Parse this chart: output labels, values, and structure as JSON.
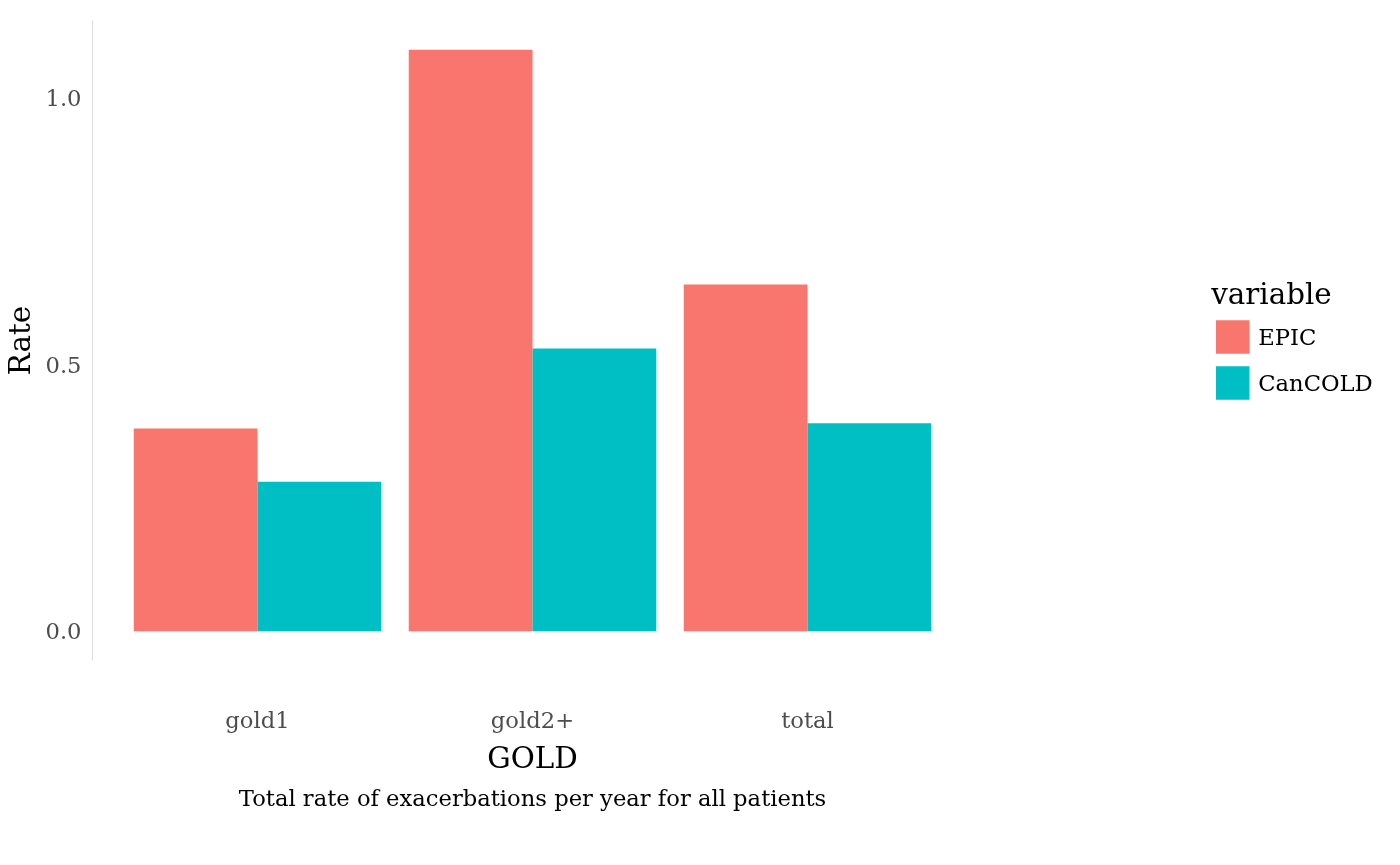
{
  "chart_data": {
    "type": "bar",
    "xlabel": "GOLD",
    "ylabel": "Rate",
    "legend_title": "variable",
    "categories": [
      "gold1",
      "gold2+",
      "total"
    ],
    "series": [
      {
        "name": "EPIC",
        "color": "#f8766d",
        "values": [
          0.38,
          1.09,
          0.65
        ]
      },
      {
        "name": "CanCOLD",
        "color": "#00bfc4",
        "values": [
          0.28,
          0.53,
          0.39
        ]
      }
    ],
    "ylim": [
      -0.055,
      1.145
    ],
    "yticks": [
      {
        "value": 0,
        "label": "0.0"
      },
      {
        "value": 0.5,
        "label": "0.5"
      },
      {
        "value": 1,
        "label": "1.0"
      }
    ],
    "legend": "right",
    "annotations": [
      "Total rate of exacerbations per year for all patients"
    ]
  }
}
